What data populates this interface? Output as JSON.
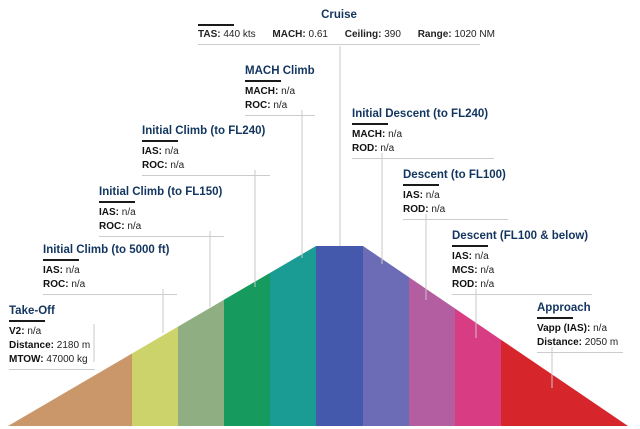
{
  "cruise": {
    "title": "Cruise",
    "tas_label": "TAS:",
    "tas_value": "440 kts",
    "mach_label": "MACH:",
    "mach_value": "0.61",
    "ceiling_label": "Ceiling:",
    "ceiling_value": "390",
    "range_label": "Range:",
    "range_value": "1020 NM"
  },
  "phases": [
    {
      "id": "takeoff",
      "title": "Take-Off",
      "color": "#c9976a",
      "rows": [
        {
          "k": "V2:",
          "v": "n/a"
        },
        {
          "k": "Distance:",
          "v": "2180 m"
        },
        {
          "k": "MTOW:",
          "v": "47000 kg"
        }
      ]
    },
    {
      "id": "climb-5000",
      "title": "Initial Climb (to 5000 ft)",
      "color": "#cbd36a",
      "rows": [
        {
          "k": "IAS:",
          "v": "n/a"
        },
        {
          "k": "ROC:",
          "v": "n/a"
        }
      ]
    },
    {
      "id": "climb-fl150",
      "title": "Initial Climb (to FL150)",
      "color": "#8fae82",
      "rows": [
        {
          "k": "IAS:",
          "v": "n/a"
        },
        {
          "k": "ROC:",
          "v": "n/a"
        }
      ]
    },
    {
      "id": "climb-fl240",
      "title": "Initial Climb (to FL240)",
      "color": "#169a5e",
      "rows": [
        {
          "k": "IAS:",
          "v": "n/a"
        },
        {
          "k": "ROC:",
          "v": "n/a"
        }
      ]
    },
    {
      "id": "mach-climb",
      "title": "MACH Climb",
      "color": "#1a9c94",
      "rows": [
        {
          "k": "MACH:",
          "v": "n/a"
        },
        {
          "k": "ROC:",
          "v": "n/a"
        }
      ]
    },
    {
      "id": "initial-descent",
      "title": "Initial Descent (to FL240)",
      "color": "#6b6bb6",
      "rows": [
        {
          "k": "MACH:",
          "v": "n/a"
        },
        {
          "k": "ROD:",
          "v": "n/a"
        }
      ]
    },
    {
      "id": "descent-fl100",
      "title": "Descent (to FL100)",
      "color": "#b25ea0",
      "rows": [
        {
          "k": "IAS:",
          "v": "n/a"
        },
        {
          "k": "ROD:",
          "v": "n/a"
        }
      ]
    },
    {
      "id": "descent-below",
      "title": "Descent (FL100 & below)",
      "color": "#d83d84",
      "rows": [
        {
          "k": "IAS:",
          "v": "n/a"
        },
        {
          "k": "MCS:",
          "v": "n/a"
        },
        {
          "k": "ROD:",
          "v": "n/a"
        }
      ]
    },
    {
      "id": "approach",
      "title": "Approach",
      "color": "#d7262b",
      "rows": [
        {
          "k": "Vapp (IAS):",
          "v": "n/a"
        },
        {
          "k": "Distance:",
          "v": "2050 m"
        }
      ]
    }
  ],
  "cruise_color": "#4458ac"
}
